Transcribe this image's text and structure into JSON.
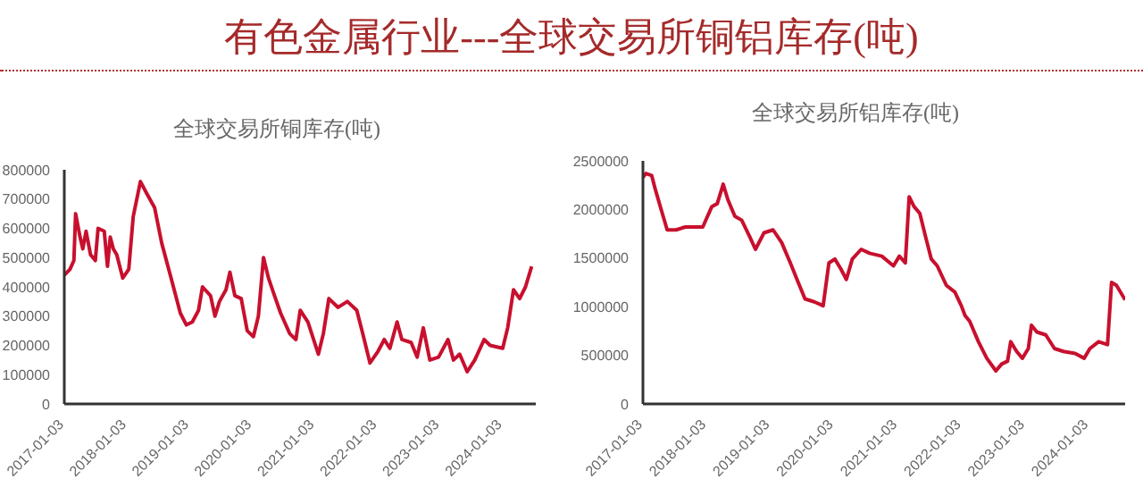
{
  "chart_data": [
    {
      "type": "line",
      "title": "全球交易所铜库存(吨)",
      "annotations": [
        "有色金属行业---全球交易所铜铝库存(吨)"
      ],
      "color": "#c8102e",
      "x": [
        "2017-01-03",
        "2017-02-05",
        "2017-02-28",
        "2017-03-10",
        "2017-04-05",
        "2017-04-21",
        "2017-05-10",
        "2017-06-05",
        "2017-07-03",
        "2017-07-19",
        "2017-08-24",
        "2017-09-12",
        "2017-09-28",
        "2017-10-16",
        "2017-11-05",
        "2017-12-10",
        "2018-01-14",
        "2018-02-09",
        "2018-03-23",
        "2018-04-28",
        "2018-06-14",
        "2018-07-25",
        "2018-09-18",
        "2018-11-11",
        "2018-12-16",
        "2019-01-20",
        "2019-02-25",
        "2019-03-20",
        "2019-05-06",
        "2019-06-01",
        "2019-06-27",
        "2019-08-04",
        "2019-08-27",
        "2019-09-25",
        "2019-11-01",
        "2019-12-06",
        "2020-01-11",
        "2020-02-09",
        "2020-03-10",
        "2020-04-08",
        "2020-05-13",
        "2020-06-18",
        "2020-08-10",
        "2020-09-15",
        "2020-10-10",
        "2020-11-24",
        "2021-01-24",
        "2021-02-22",
        "2021-03-26",
        "2021-05-19",
        "2021-07-12",
        "2021-09-05",
        "2021-10-10",
        "2021-11-21",
        "2022-01-07",
        "2022-02-12",
        "2022-03-17",
        "2022-04-28",
        "2022-05-26",
        "2022-07-19",
        "2022-08-23",
        "2022-09-28",
        "2022-11-05",
        "2022-12-26",
        "2023-02-19",
        "2023-03-23",
        "2023-04-28",
        "2023-06-11",
        "2023-07-25",
        "2023-09-18",
        "2023-10-23",
        "2024-01-04",
        "2024-02-02",
        "2024-03-07",
        "2024-04-12",
        "2024-05-16",
        "2024-06-21"
      ],
      "values": [
        440000,
        460000,
        490000,
        650000,
        570000,
        530000,
        590000,
        510000,
        490000,
        600000,
        590000,
        470000,
        570000,
        530000,
        510000,
        430000,
        460000,
        640000,
        760000,
        720000,
        670000,
        550000,
        430000,
        310000,
        270000,
        280000,
        320000,
        400000,
        370000,
        300000,
        350000,
        390000,
        450000,
        370000,
        360000,
        250000,
        230000,
        300000,
        500000,
        430000,
        370000,
        310000,
        240000,
        220000,
        320000,
        280000,
        170000,
        240000,
        360000,
        330000,
        350000,
        320000,
        240000,
        140000,
        180000,
        220000,
        190000,
        280000,
        220000,
        210000,
        160000,
        260000,
        150000,
        160000,
        220000,
        150000,
        170000,
        110000,
        150000,
        220000,
        200000,
        190000,
        260000,
        390000,
        360000,
        400000,
        470000
      ],
      "xlim": [
        "2017-01-03",
        "2024-07-15"
      ],
      "xticks": [
        "2017-01-03",
        "2018-01-03",
        "2019-01-03",
        "2020-01-03",
        "2021-01-03",
        "2022-01-03",
        "2023-01-03",
        "2024-01-03"
      ],
      "ylim": [
        0,
        800000
      ],
      "yticks": [
        0,
        100000,
        200000,
        300000,
        400000,
        500000,
        600000,
        700000,
        800000
      ]
    },
    {
      "type": "line",
      "title": "全球交易所铝库存(吨)",
      "color": "#c8102e",
      "x": [
        "2017-01-03",
        "2017-01-20",
        "2017-02-22",
        "2017-03-16",
        "2017-04-19",
        "2017-05-22",
        "2017-07-12",
        "2017-09-03",
        "2017-10-21",
        "2017-12-12",
        "2018-02-02",
        "2018-03-05",
        "2018-04-08",
        "2018-05-05",
        "2018-06-14",
        "2018-07-23",
        "2018-09-07",
        "2018-10-10",
        "2018-11-28",
        "2019-01-19",
        "2019-03-09",
        "2019-04-28",
        "2019-06-12",
        "2019-07-21",
        "2019-09-12",
        "2019-11-02",
        "2019-12-05",
        "2020-01-08",
        "2020-02-11",
        "2020-03-14",
        "2020-04-17",
        "2020-06-07",
        "2020-07-25",
        "2020-10-03",
        "2020-12-09",
        "2021-01-12",
        "2021-02-15",
        "2021-03-09",
        "2021-04-06",
        "2021-05-09",
        "2021-06-11",
        "2021-07-14",
        "2021-08-17",
        "2021-10-08",
        "2021-11-26",
        "2022-01-02",
        "2022-01-23",
        "2022-02-19",
        "2022-04-10",
        "2022-05-28",
        "2022-07-19",
        "2022-08-21",
        "2022-09-24",
        "2022-10-12",
        "2022-11-15",
        "2022-12-18",
        "2023-01-21",
        "2023-02-08",
        "2023-03-11",
        "2023-05-01",
        "2023-06-20",
        "2023-08-10",
        "2023-10-16",
        "2023-12-07",
        "2024-01-09",
        "2024-02-28",
        "2024-04-19",
        "2024-05-12",
        "2024-06-09",
        "2024-07-29"
      ],
      "values": [
        2330000,
        2370000,
        2350000,
        2200000,
        1990000,
        1790000,
        1790000,
        1820000,
        1820000,
        1820000,
        2030000,
        2060000,
        2260000,
        2100000,
        1930000,
        1890000,
        1720000,
        1590000,
        1760000,
        1790000,
        1660000,
        1450000,
        1250000,
        1080000,
        1050000,
        1010000,
        1450000,
        1490000,
        1390000,
        1280000,
        1490000,
        1590000,
        1550000,
        1520000,
        1420000,
        1520000,
        1450000,
        2130000,
        2030000,
        1960000,
        1720000,
        1490000,
        1420000,
        1220000,
        1150000,
        1010000,
        910000,
        850000,
        640000,
        470000,
        340000,
        410000,
        440000,
        640000,
        540000,
        470000,
        570000,
        810000,
        740000,
        710000,
        570000,
        540000,
        520000,
        470000,
        570000,
        640000,
        610000,
        1250000,
        1220000,
        1070000
      ],
      "xlim": [
        "2017-01-03",
        "2024-07-29"
      ],
      "xticks": [
        "2017-01-03",
        "2018-01-03",
        "2019-01-03",
        "2020-01-03",
        "2021-01-03",
        "2022-01-03",
        "2023-01-03",
        "2024-01-03"
      ],
      "ylim": [
        0,
        2500000
      ],
      "yticks": [
        0,
        500000,
        1000000,
        1500000,
        2000000,
        2500000
      ]
    }
  ]
}
